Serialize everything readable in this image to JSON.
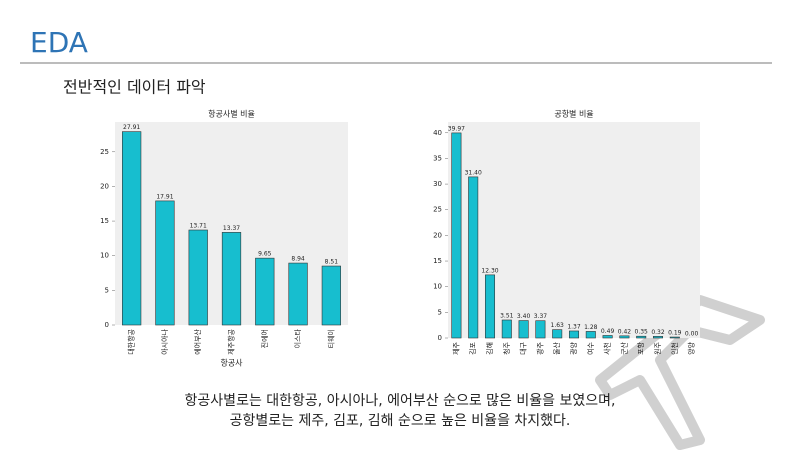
{
  "title": "EDA",
  "subtitle": "전반적인 데이터 파악",
  "caption": [
    "항공사별로는 대한항공, 아시아나, 에어부산 순으로 많은 비율을 보였으며,",
    "공항별로는 제주, 김포, 김해 순으로 높은 비율을 차지했다."
  ],
  "chart_data": [
    {
      "type": "bar",
      "title": "항공사별 비율",
      "xlabel": "항공사",
      "categories": [
        "대한항공",
        "아시아나",
        "에어부산",
        "제주항공",
        "진에어",
        "이스타",
        "티웨이"
      ],
      "values": [
        27.91,
        17.91,
        13.71,
        13.37,
        9.65,
        8.94,
        8.51
      ],
      "color": "#17becf",
      "ylim": [
        0,
        29.3
      ],
      "yticks": [
        0,
        5,
        10,
        15,
        20,
        25
      ],
      "grid": false
    },
    {
      "type": "bar",
      "title": "공항별 비율",
      "categories": [
        "제주",
        "김포",
        "김해",
        "청주",
        "대구",
        "광주",
        "울산",
        "광양",
        "여수",
        "사천",
        "군산",
        "포항",
        "원주",
        "인천",
        "양양"
      ],
      "values": [
        39.97,
        31.4,
        12.3,
        3.51,
        3.4,
        3.37,
        1.63,
        1.37,
        1.28,
        0.49,
        0.42,
        0.35,
        0.32,
        0.19,
        0
      ],
      "value_labels": [
        "39.97",
        "31.40",
        "12.30",
        "3.51",
        "3.40",
        "3.37",
        "1.63",
        "1.37",
        "1.28",
        "0.49",
        "0.42",
        "0.35",
        "0.32",
        "0.19",
        "0.00"
      ],
      "color": "#17becf",
      "ylim": [
        0,
        42.1
      ],
      "yticks": [
        0,
        5,
        10,
        15,
        20,
        25,
        30,
        35,
        40
      ],
      "grid": false
    }
  ]
}
